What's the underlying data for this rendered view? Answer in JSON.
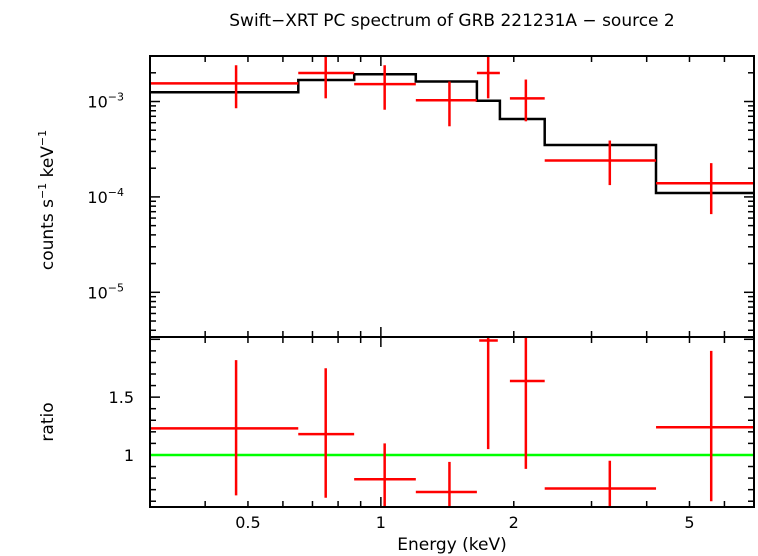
{
  "chart_data": [
    {
      "type": "scatter",
      "title": "Swift−XRT PC spectrum of GRB 221231A − source 2",
      "ylabel_base": "counts s",
      "ylabel_sup1": "−1",
      "ylabel_mid": " keV",
      "ylabel_sup2": "−1",
      "xscale": "log",
      "yscale": "log",
      "xlim": [
        0.3,
        7.0
      ],
      "ylim": [
        3.4e-06,
        0.003
      ],
      "ytick_labels": [
        {
          "base": "10",
          "exp": "−3",
          "value": 0.001
        },
        {
          "base": "10",
          "exp": "−4",
          "value": 0.0001
        },
        {
          "base": "10",
          "exp": "−5",
          "value": 1e-05
        }
      ],
      "series": [
        {
          "kind": "data-with-errors",
          "color": "#ff0000",
          "points": [
            {
              "x": 0.47,
              "xlo": 0.3,
              "xhi": 0.65,
              "y": 0.00155,
              "ylo": 0.00085,
              "yhi": 0.0024
            },
            {
              "x": 0.75,
              "xlo": 0.65,
              "xhi": 0.87,
              "y": 0.00199,
              "ylo": 0.00108,
              "yhi": 0.003
            },
            {
              "x": 1.02,
              "xlo": 0.87,
              "xhi": 1.2,
              "y": 0.00152,
              "ylo": 0.00082,
              "yhi": 0.0024
            },
            {
              "x": 1.43,
              "xlo": 1.2,
              "xhi": 1.65,
              "y": 0.00103,
              "ylo": 0.00055,
              "yhi": 0.00162
            },
            {
              "x": 1.75,
              "xlo": 1.65,
              "xhi": 1.86,
              "y": 0.00199,
              "ylo": 0.00108,
              "yhi": 0.003
            },
            {
              "x": 2.13,
              "xlo": 1.96,
              "xhi": 2.35,
              "y": 0.00108,
              "ylo": 0.00062,
              "yhi": 0.0017
            },
            {
              "x": 3.3,
              "xlo": 2.35,
              "xhi": 4.2,
              "y": 0.000241,
              "ylo": 0.000133,
              "yhi": 0.00039
            },
            {
              "x": 5.6,
              "xlo": 4.2,
              "xhi": 7.0,
              "y": 0.000139,
              "ylo": 6.6e-05,
              "yhi": 0.000226
            }
          ]
        },
        {
          "kind": "model-step",
          "color": "#000000",
          "steps": [
            {
              "xlo": 0.3,
              "xhi": 0.65,
              "y": 0.00125
            },
            {
              "xlo": 0.65,
              "xhi": 0.87,
              "y": 0.00168
            },
            {
              "xlo": 0.87,
              "xhi": 1.2,
              "y": 0.00193
            },
            {
              "xlo": 1.2,
              "xhi": 1.65,
              "y": 0.00162
            },
            {
              "xlo": 1.65,
              "xhi": 1.86,
              "y": 0.00102
            },
            {
              "xlo": 1.86,
              "xhi": 2.35,
              "y": 0.000655
            },
            {
              "xlo": 2.35,
              "xhi": 4.2,
              "y": 0.00035
            },
            {
              "xlo": 4.2,
              "xhi": 7.0,
              "y": 0.00011
            }
          ]
        }
      ]
    },
    {
      "type": "scatter",
      "xlabel": "Energy (keV)",
      "ylabel": "ratio",
      "xscale": "log",
      "xlim": [
        0.3,
        7.0
      ],
      "ylim": [
        0.55,
        2.02
      ],
      "ytick_labels": [
        {
          "label": "1",
          "value": 1
        },
        {
          "label": "1.5",
          "value": 1.5
        }
      ],
      "xtick_labels": [
        {
          "label": "0.5",
          "value": 0.5
        },
        {
          "label": "1",
          "value": 1
        },
        {
          "label": "2",
          "value": 2
        },
        {
          "label": "5",
          "value": 5
        }
      ],
      "reference_line": {
        "y": 1.0,
        "color": "#00ff00"
      },
      "series": [
        {
          "kind": "ratio-with-errors",
          "color": "#ff0000",
          "points": [
            {
              "x": 0.47,
              "xlo": 0.3,
              "xhi": 0.65,
              "y": 1.23,
              "ylo": 0.65,
              "yhi": 1.82
            },
            {
              "x": 0.75,
              "xlo": 0.65,
              "xhi": 0.87,
              "y": 1.18,
              "ylo": 0.63,
              "yhi": 1.75
            },
            {
              "x": 1.02,
              "xlo": 0.87,
              "xhi": 1.2,
              "y": 0.79,
              "ylo": 0.55,
              "yhi": 1.1
            },
            {
              "x": 1.43,
              "xlo": 1.2,
              "xhi": 1.65,
              "y": 0.68,
              "ylo": 0.55,
              "yhi": 0.94
            },
            {
              "x": 1.75,
              "xlo": 1.67,
              "xhi": 1.84,
              "y": 1.99,
              "ylo": 1.05,
              "yhi": 2.02
            },
            {
              "x": 2.13,
              "xlo": 1.96,
              "xhi": 2.35,
              "y": 1.64,
              "ylo": 0.88,
              "yhi": 2.02
            },
            {
              "x": 3.3,
              "xlo": 2.35,
              "xhi": 4.2,
              "y": 0.71,
              "ylo": 0.55,
              "yhi": 0.95
            },
            {
              "x": 5.6,
              "xlo": 4.2,
              "xhi": 7.0,
              "y": 1.24,
              "ylo": 0.6,
              "yhi": 1.9
            }
          ]
        }
      ]
    }
  ]
}
